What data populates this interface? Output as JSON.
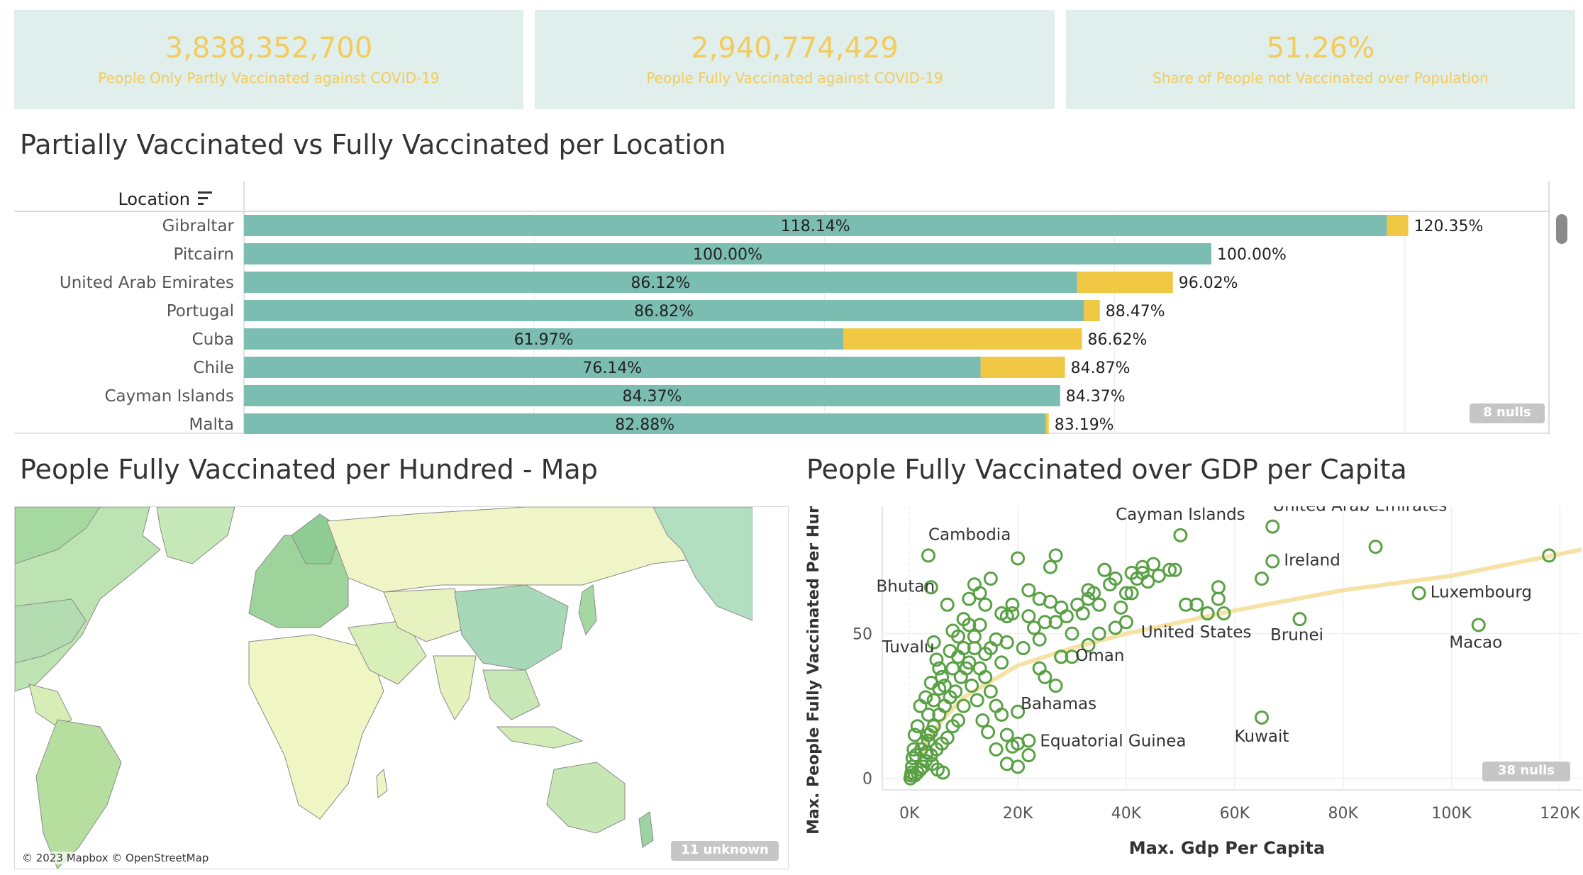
{
  "kpis": [
    {
      "value": "3,838,352,700",
      "label": "People Only Partly Vaccinated against COVID-19"
    },
    {
      "value": "2,940,774,429",
      "label": "People Fully Vaccinated against COVID-19"
    },
    {
      "value": "51.26%",
      "label": "Share of People not Vaccinated over Population"
    }
  ],
  "bar_section": {
    "title": "Partially Vaccinated vs Fully Vaccinated per Location",
    "header": "Location",
    "nulls": "8 nulls"
  },
  "map_section": {
    "title": "People Fully Vaccinated per Hundred - Map",
    "attribution": "© 2023 Mapbox © OpenStreetMap",
    "unknown": "11 unknown"
  },
  "scatter_section": {
    "title": "People Fully Vaccinated over GDP per Capita",
    "nulls": "38 nulls"
  },
  "colors": {
    "kpi_bg": "#e0efeb",
    "kpi_text": "#f3cb5c",
    "fully": "#7bbdb1",
    "partial": "#f0c843",
    "scatter_point": "#5aa146",
    "trend": "#f7e2a6"
  },
  "chart_data": [
    {
      "type": "bar",
      "stacked": true,
      "categories": [
        "Gibraltar",
        "Pitcairn",
        "United Arab Emirates",
        "Portugal",
        "Cuba",
        "Chile",
        "Cayman Islands",
        "Malta"
      ],
      "series": [
        {
          "values": [
            118.14,
            100.0,
            86.12,
            86.82,
            61.97,
            76.14,
            84.37,
            82.88
          ]
        },
        {
          "values": [
            120.35,
            100.0,
            96.02,
            88.47,
            86.62,
            84.87,
            84.37,
            83.19
          ]
        }
      ],
      "inner_labels": [
        "118.14%",
        "100.00%",
        "86.12%",
        "86.82%",
        "61.97%",
        "76.14%",
        "84.37%",
        "82.88%"
      ],
      "outer_labels": [
        "120.35%",
        "100.00%",
        "96.02%",
        "88.47%",
        "86.62%",
        "84.87%",
        "84.37%",
        "83.19%"
      ]
    },
    {
      "type": "scatter",
      "xlabel": "Max. Gdp Per Capita",
      "ylabel": "Max. People Fully Vaccinated Per Hundred",
      "xlim": [
        -5000,
        124000
      ],
      "ylim": [
        -4,
        94
      ],
      "xticks": [
        "0K",
        "20K",
        "40K",
        "60K",
        "80K",
        "100K",
        "120K"
      ],
      "xtick_values": [
        0,
        20000,
        40000,
        60000,
        80000,
        100000,
        120000
      ],
      "yticks": [
        "0",
        "50"
      ],
      "ytick_values": [
        0,
        50
      ],
      "trend": [
        [
          500,
          0
        ],
        [
          3000,
          12
        ],
        [
          6000,
          20
        ],
        [
          10000,
          28
        ],
        [
          20000,
          39
        ],
        [
          30000,
          45
        ],
        [
          40000,
          50
        ],
        [
          50000,
          54
        ],
        [
          60000,
          58
        ],
        [
          80000,
          65
        ],
        [
          100000,
          70
        ],
        [
          124000,
          79
        ]
      ],
      "labeled_points": [
        {
          "label": "Cambodia",
          "x": 3500,
          "y": 77,
          "dx": 0,
          "dy": -22,
          "anchor": "start"
        },
        {
          "label": "Bhutan",
          "x": 4000,
          "y": 66,
          "dx": -36,
          "dy": 6,
          "anchor": "middle"
        },
        {
          "label": "Cayman Islands",
          "x": 50000,
          "y": 84,
          "dx": 0,
          "dy": -22,
          "anchor": "middle"
        },
        {
          "label": "United Arab Emirates",
          "x": 67000,
          "y": 87,
          "dx": 0,
          "dy": -22,
          "anchor": "start"
        },
        {
          "label": "Ireland",
          "x": 67000,
          "y": 75,
          "dx": 16,
          "dy": 6,
          "anchor": "start"
        },
        {
          "label": "Luxembourg",
          "x": 94000,
          "y": 64,
          "dx": 16,
          "dy": 6,
          "anchor": "start"
        },
        {
          "label": "Macao",
          "x": 105000,
          "y": 53,
          "dx": -4,
          "dy": 32,
          "anchor": "middle"
        },
        {
          "label": "Tuvalu",
          "x": 4500,
          "y": 47,
          "dx": -36,
          "dy": 14,
          "anchor": "middle"
        },
        {
          "label": "United States",
          "x": 55000,
          "y": 57,
          "dx": -16,
          "dy": 34,
          "anchor": "middle"
        },
        {
          "label": "Oman",
          "x": 28000,
          "y": 42,
          "dx": 20,
          "dy": 6,
          "anchor": "start"
        },
        {
          "label": "Brunei",
          "x": 72000,
          "y": 55,
          "dx": -4,
          "dy": 30,
          "anchor": "middle"
        },
        {
          "label": "Bahamas",
          "x": 20000,
          "y": 23,
          "dx": 4,
          "dy": -4,
          "anchor": "start"
        },
        {
          "label": "Equatorial Guinea",
          "x": 22000,
          "y": 13,
          "dx": 16,
          "dy": 8,
          "anchor": "start"
        },
        {
          "label": "Kuwait",
          "x": 65000,
          "y": 21,
          "dx": 0,
          "dy": 34,
          "anchor": "middle"
        }
      ],
      "points": [
        [
          118000,
          77
        ],
        [
          86000,
          80
        ],
        [
          65000,
          69
        ],
        [
          57000,
          66
        ],
        [
          55000,
          57
        ],
        [
          51000,
          60
        ],
        [
          48000,
          72
        ],
        [
          46000,
          70
        ],
        [
          45000,
          74
        ],
        [
          44000,
          68
        ],
        [
          43000,
          73
        ],
        [
          42000,
          69
        ],
        [
          41000,
          71
        ],
        [
          40000,
          64
        ],
        [
          39000,
          59
        ],
        [
          38000,
          69
        ],
        [
          37000,
          67
        ],
        [
          36000,
          72
        ],
        [
          35000,
          60
        ],
        [
          34000,
          64
        ],
        [
          33000,
          62
        ],
        [
          32000,
          57
        ],
        [
          31000,
          60
        ],
        [
          30000,
          50
        ],
        [
          29000,
          56
        ],
        [
          28000,
          59
        ],
        [
          27000,
          54
        ],
        [
          26000,
          61
        ],
        [
          25000,
          54
        ],
        [
          24000,
          48
        ],
        [
          23000,
          52
        ],
        [
          22000,
          56
        ],
        [
          21000,
          45
        ],
        [
          20000,
          76
        ],
        [
          19000,
          57
        ],
        [
          18000,
          47
        ],
        [
          17000,
          40
        ],
        [
          16000,
          48
        ],
        [
          15000,
          45
        ],
        [
          14000,
          43
        ],
        [
          13000,
          53
        ],
        [
          12000,
          49
        ],
        [
          11000,
          40
        ],
        [
          10000,
          45
        ],
        [
          9000,
          42
        ],
        [
          8000,
          38
        ],
        [
          7000,
          60
        ],
        [
          6000,
          35
        ],
        [
          5000,
          41
        ],
        [
          4000,
          33
        ],
        [
          3000,
          28
        ],
        [
          2000,
          25
        ],
        [
          1500,
          18
        ],
        [
          1000,
          15
        ],
        [
          800,
          10
        ],
        [
          600,
          7
        ],
        [
          500,
          4
        ],
        [
          400,
          2
        ],
        [
          300,
          1
        ],
        [
          200,
          0
        ],
        [
          26000,
          73
        ],
        [
          27000,
          77
        ],
        [
          19000,
          60
        ],
        [
          22000,
          65
        ],
        [
          24000,
          62
        ],
        [
          33000,
          65
        ],
        [
          36000,
          72
        ],
        [
          41000,
          64
        ],
        [
          43000,
          71
        ],
        [
          49000,
          72
        ],
        [
          53000,
          60
        ],
        [
          57000,
          62
        ],
        [
          58000,
          57
        ],
        [
          11000,
          62
        ],
        [
          12000,
          67
        ],
        [
          13000,
          64
        ],
        [
          14000,
          60
        ],
        [
          15000,
          69
        ],
        [
          17000,
          57
        ],
        [
          18000,
          56
        ],
        [
          8000,
          51
        ],
        [
          9000,
          49
        ],
        [
          10000,
          55
        ],
        [
          11000,
          53
        ],
        [
          12000,
          45
        ],
        [
          13000,
          38
        ],
        [
          14000,
          35
        ],
        [
          15000,
          30
        ],
        [
          16000,
          25
        ],
        [
          17000,
          22
        ],
        [
          18000,
          15
        ],
        [
          19000,
          11
        ],
        [
          20000,
          12
        ],
        [
          10000,
          25
        ],
        [
          9000,
          20
        ],
        [
          8000,
          18
        ],
        [
          7000,
          14
        ],
        [
          6000,
          12
        ],
        [
          5000,
          10
        ],
        [
          4000,
          8
        ],
        [
          3000,
          6
        ],
        [
          2500,
          4
        ],
        [
          2000,
          3
        ],
        [
          1500,
          2
        ],
        [
          1000,
          1
        ],
        [
          3500,
          15
        ],
        [
          4500,
          18
        ],
        [
          5500,
          22
        ],
        [
          6500,
          25
        ],
        [
          7500,
          28
        ],
        [
          8500,
          30
        ],
        [
          9500,
          35
        ],
        [
          10500,
          38
        ],
        [
          11500,
          32
        ],
        [
          12500,
          27
        ],
        [
          13500,
          20
        ],
        [
          14500,
          16
        ],
        [
          24000,
          38
        ],
        [
          25000,
          35
        ],
        [
          27000,
          32
        ],
        [
          28000,
          42
        ],
        [
          30000,
          42
        ],
        [
          33000,
          46
        ],
        [
          35000,
          50
        ],
        [
          38000,
          52
        ],
        [
          40000,
          54
        ],
        [
          16000,
          10
        ],
        [
          18000,
          5
        ],
        [
          20000,
          4
        ],
        [
          22000,
          8
        ],
        [
          5500,
          38
        ],
        [
          6500,
          32
        ],
        [
          7500,
          44
        ],
        [
          2500,
          12
        ],
        [
          3500,
          22
        ],
        [
          4500,
          27
        ],
        [
          5500,
          31
        ],
        [
          1200,
          8
        ],
        [
          2200,
          10
        ],
        [
          3200,
          9
        ],
        [
          4200,
          5
        ],
        [
          5200,
          3
        ],
        [
          6200,
          2
        ],
        [
          3500,
          13
        ],
        [
          4000,
          16
        ]
      ]
    }
  ]
}
